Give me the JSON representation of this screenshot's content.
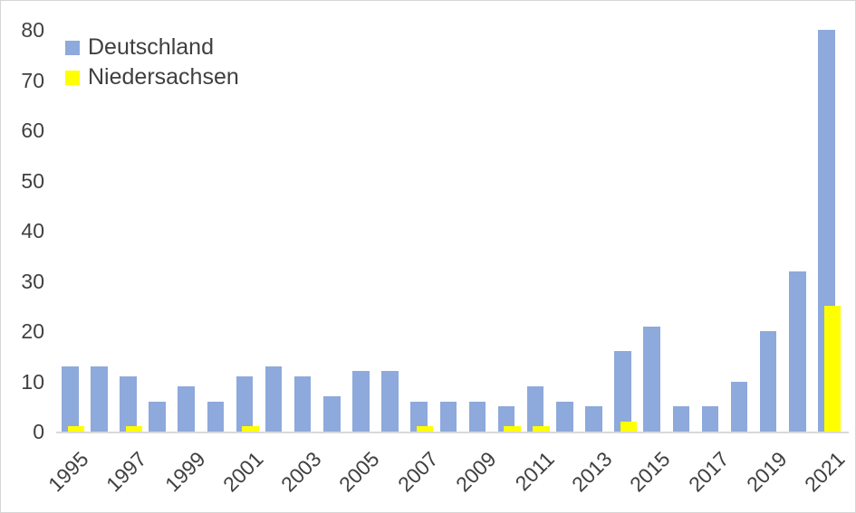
{
  "chart_data": {
    "type": "bar",
    "title": "",
    "xlabel": "",
    "ylabel": "",
    "categories": [
      "1995",
      "1996",
      "1997",
      "1998",
      "1999",
      "2000",
      "2001",
      "2002",
      "2003",
      "2004",
      "2005",
      "2006",
      "2007",
      "2008",
      "2009",
      "2010",
      "2011",
      "2012",
      "2013",
      "2014",
      "2015",
      "2016",
      "2017",
      "2018",
      "2019",
      "2020",
      "2021"
    ],
    "series": [
      {
        "name": "Deutschland",
        "color": "#8EA9DB",
        "values": [
          13,
          13,
          11,
          6,
          9,
          6,
          11,
          13,
          11,
          7,
          12,
          12,
          6,
          6,
          6,
          5,
          9,
          6,
          5,
          16,
          21,
          5,
          5,
          10,
          20,
          32,
          80
        ]
      },
      {
        "name": "Niedersachsen",
        "color": "#FFFF00",
        "values": [
          1,
          0,
          1,
          0,
          0,
          0,
          1,
          0,
          0,
          0,
          0,
          0,
          1,
          0,
          0,
          1,
          1,
          0,
          0,
          2,
          0,
          0,
          0,
          0,
          0,
          0,
          25
        ]
      }
    ],
    "ylim": [
      0,
      80
    ],
    "y_ticks": [
      0,
      10,
      20,
      30,
      40,
      50,
      60,
      70,
      80
    ],
    "x_tick_labels": [
      "1995",
      "1997",
      "1999",
      "2001",
      "2003",
      "2005",
      "2007",
      "2009",
      "2011",
      "2013",
      "2015",
      "2017",
      "2019",
      "2021"
    ],
    "x_label_every": 2,
    "grid": false,
    "legend_position": "top-left",
    "colors": {
      "axis_text": "#404040",
      "axis_line": "#d9d9d9",
      "background": "#ffffff",
      "border": "#d6d6d6"
    }
  }
}
